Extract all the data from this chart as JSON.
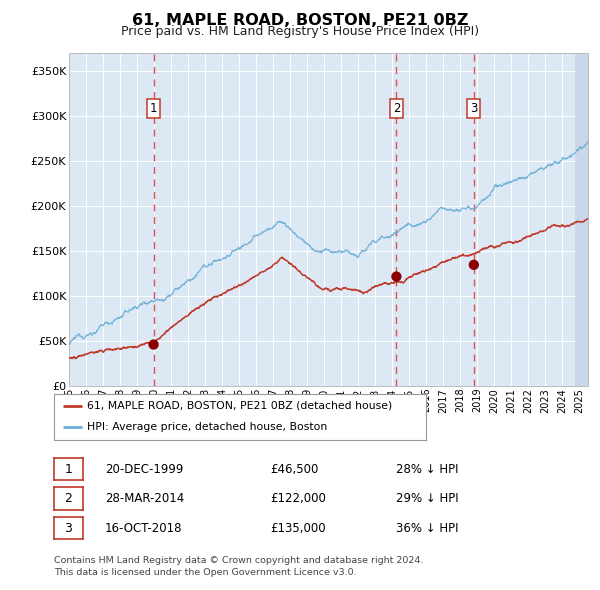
{
  "title": "61, MAPLE ROAD, BOSTON, PE21 0BZ",
  "subtitle": "Price paid vs. HM Land Registry's House Price Index (HPI)",
  "ylim": [
    0,
    370000
  ],
  "yticks": [
    0,
    50000,
    100000,
    150000,
    200000,
    250000,
    300000,
    350000
  ],
  "ytick_labels": [
    "£0",
    "£50K",
    "£100K",
    "£150K",
    "£200K",
    "£250K",
    "£300K",
    "£350K"
  ],
  "xlim_start": 1995.0,
  "xlim_end": 2025.5,
  "background_color": "#dce9f5",
  "hpi_line_color": "#6aaed6",
  "price_line_color": "#c0392b",
  "marker_color": "#8b0000",
  "dashed_line_color": "#e05050",
  "sale_dates": [
    1999.97,
    2014.24,
    2018.79
  ],
  "sale_prices": [
    46500,
    122000,
    135000
  ],
  "sale_labels": [
    "1",
    "2",
    "3"
  ],
  "legend_label_red": "61, MAPLE ROAD, BOSTON, PE21 0BZ (detached house)",
  "legend_label_blue": "HPI: Average price, detached house, Boston",
  "table_rows": [
    [
      "1",
      "20-DEC-1999",
      "£46,500",
      "28% ↓ HPI"
    ],
    [
      "2",
      "28-MAR-2014",
      "£122,000",
      "29% ↓ HPI"
    ],
    [
      "3",
      "16-OCT-2018",
      "£135,000",
      "36% ↓ HPI"
    ]
  ],
  "footnote": "Contains HM Land Registry data © Crown copyright and database right 2024.\nThis data is licensed under the Open Government Licence v3.0.",
  "grid_color": "#ffffff"
}
